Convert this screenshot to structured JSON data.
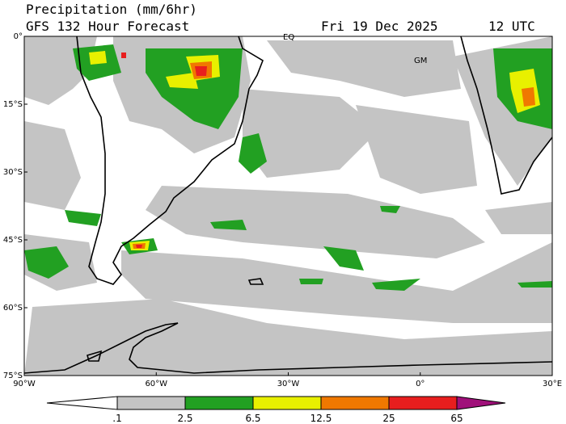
{
  "header": {
    "title": "Precipitation (mm/6hr)",
    "subtitle": "GFS 132 Hour Forecast",
    "date": "Fri 19 Dec 2025",
    "time": "12 UTC"
  },
  "map": {
    "lat_labels": [
      "0°",
      "15°S",
      "30°S",
      "45°S",
      "60°S",
      "75°S"
    ],
    "lon_labels": [
      "90°W",
      "60°W",
      "30°W",
      "0°",
      "30°E"
    ],
    "markers": [
      "EQ",
      "GM"
    ]
  },
  "colorbar": {
    "labels": [
      ".1",
      "2.5",
      "6.5",
      "12.5",
      "25",
      "65"
    ]
  }
}
